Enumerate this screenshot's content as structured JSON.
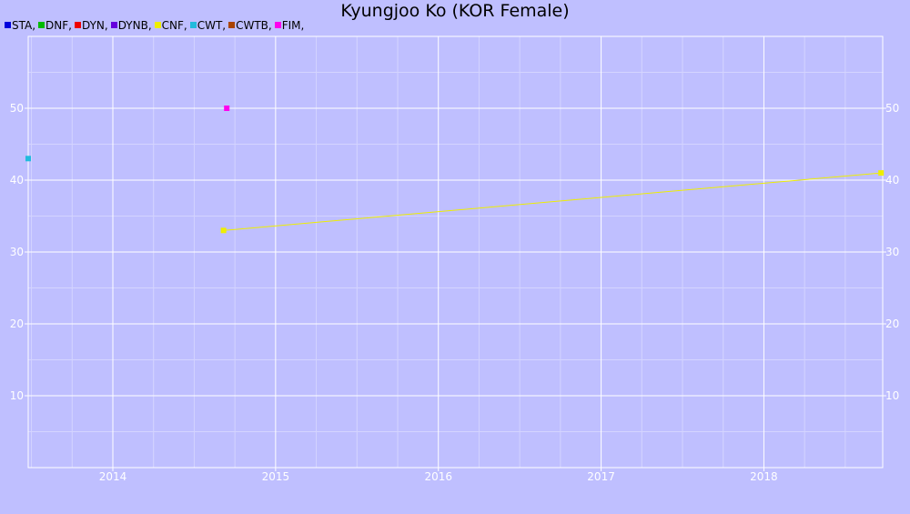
{
  "chart_data": {
    "type": "line",
    "title": "Kyungjoo Ko (KOR Female)",
    "xlabel": "",
    "ylabel": "",
    "x_ticks": [
      "2014",
      "2015",
      "2016",
      "2017",
      "2018"
    ],
    "y_ticks": [
      10,
      20,
      30,
      40,
      50
    ],
    "xlim": [
      2013.48,
      2018.73
    ],
    "ylim": [
      0,
      60
    ],
    "grid": true,
    "legend_position": "top-left",
    "legend": [
      {
        "name": "STA",
        "label": "STA,",
        "color": "#0000dd"
      },
      {
        "name": "DNF",
        "label": "DNF,",
        "color": "#00bb00"
      },
      {
        "name": "DYN",
        "label": "DYN,",
        "color": "#ee0000"
      },
      {
        "name": "DYNB",
        "label": "DYNB,",
        "color": "#6600dd"
      },
      {
        "name": "CNF",
        "label": "CNF,",
        "color": "#eeee00"
      },
      {
        "name": "CWT",
        "label": "CWT,",
        "color": "#22bbdd"
      },
      {
        "name": "CWTB",
        "label": "CWTB,",
        "color": "#aa4400"
      },
      {
        "name": "FIM",
        "label": "FIM,",
        "color": "#ff00ee"
      }
    ],
    "series": [
      {
        "name": "CNF",
        "color": "#eeee00",
        "points": [
          {
            "x": 2014.68,
            "y": 33
          },
          {
            "x": 2018.72,
            "y": 41
          }
        ]
      },
      {
        "name": "CWT",
        "color": "#22bbdd",
        "points": [
          {
            "x": 2013.48,
            "y": 43
          }
        ]
      },
      {
        "name": "FIM",
        "color": "#ff00ee",
        "points": [
          {
            "x": 2014.7,
            "y": 50
          }
        ]
      }
    ]
  }
}
